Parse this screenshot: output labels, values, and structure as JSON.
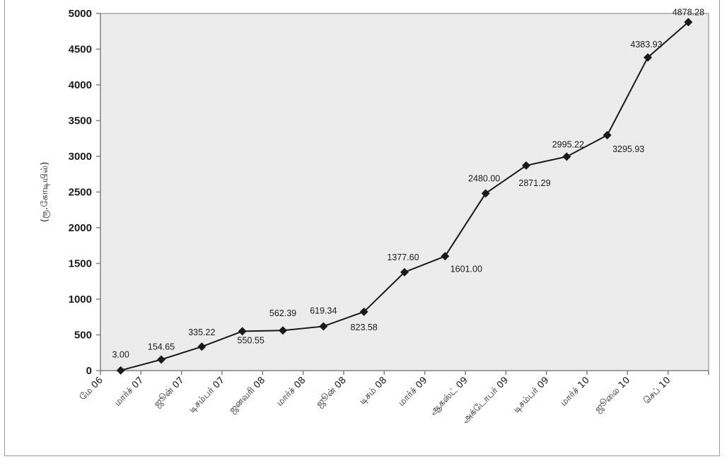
{
  "chart_data": {
    "type": "line",
    "title": "",
    "xlabel": "",
    "ylabel": "(ரூ.கோடியில்)",
    "ylim": [
      0,
      5000
    ],
    "y_ticks": [
      "0",
      "500",
      "1000",
      "1500",
      "2000",
      "2500",
      "3000",
      "3500",
      "4000",
      "4500",
      "5000"
    ],
    "grid": false,
    "legend": "none",
    "categories": [
      "மே 06",
      "மார்ச் 07",
      "ஜூன் 07",
      "டிசம்பர் 07",
      "ஜனவரி 08",
      "மார்ச் 08",
      "ஜூன் 08",
      "டிசம் 08",
      "மார்ச் 09",
      "ஆகஸ்ட் 09",
      "அக்டோபர் 09",
      "டிசம்பர் 09",
      "மார்ச் 10",
      "ஜூலை 10",
      "செப் 10"
    ],
    "series": [
      {
        "values": [
          3.0,
          154.65,
          335.22,
          550.55,
          562.39,
          619.34,
          823.58,
          1377.6,
          1601.0,
          2480.0,
          2871.29,
          2995.22,
          3295.93,
          4383.93,
          4878.28
        ],
        "labels": [
          "3.00",
          "154.65",
          "335.22",
          "550.55",
          "562.39",
          "619.34",
          "823.58",
          "1377.60",
          "1601.00",
          "2480.00",
          "2871.29",
          "2995.22",
          "3295.93",
          "4383.93",
          "4878.28"
        ],
        "color": "#1a1a1a"
      }
    ],
    "plot_background": "#ececec",
    "axis_color": "#808080"
  }
}
